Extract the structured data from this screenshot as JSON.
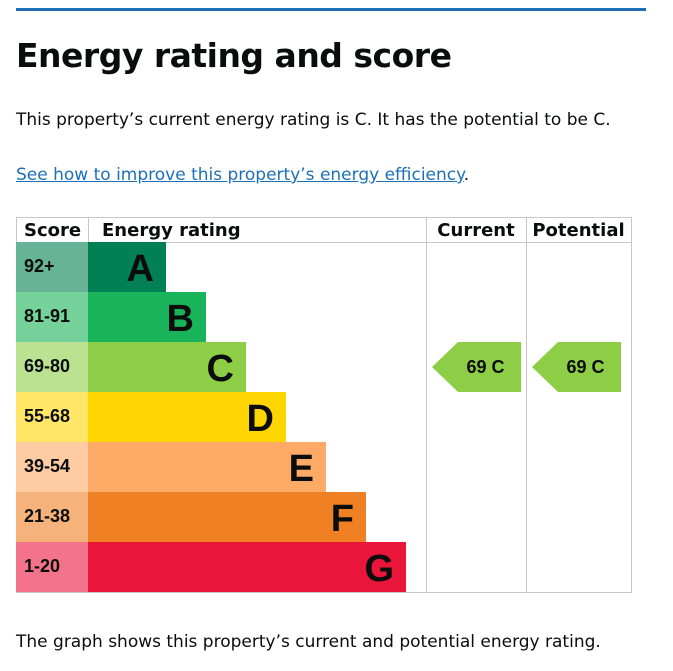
{
  "page": {
    "heading": "Energy rating and score",
    "intro": "This property’s current energy rating is C. It has the potential to be C.",
    "improve_link": "See how to improve this property’s energy efficiency",
    "improve_suffix": ".",
    "footer": "The graph shows this property’s current and potential energy rating."
  },
  "chart_data": {
    "type": "bar",
    "columns": [
      "Score",
      "Energy rating",
      "Current",
      "Potential"
    ],
    "bands": [
      {
        "score": "92+",
        "rating": "A",
        "color": "#008054",
        "score_bg": "#66b398"
      },
      {
        "score": "81-91",
        "rating": "B",
        "color": "#19b459",
        "score_bg": "#75d29b"
      },
      {
        "score": "69-80",
        "rating": "C",
        "color": "#8dce46",
        "score_bg": "#bbe290"
      },
      {
        "score": "55-68",
        "rating": "D",
        "color": "#ffd500",
        "score_bg": "#ffe666"
      },
      {
        "score": "39-54",
        "rating": "E",
        "color": "#fcaa65",
        "score_bg": "#fdcca3"
      },
      {
        "score": "21-38",
        "rating": "F",
        "color": "#ef8023",
        "score_bg": "#f5b37b"
      },
      {
        "score": "1-20",
        "rating": "G",
        "color": "#e9153b",
        "score_bg": "#f2738a"
      }
    ],
    "current": {
      "value": 69,
      "rating": "C",
      "label": "69  C"
    },
    "potential": {
      "value": 69,
      "rating": "C",
      "label": "69  C"
    }
  }
}
